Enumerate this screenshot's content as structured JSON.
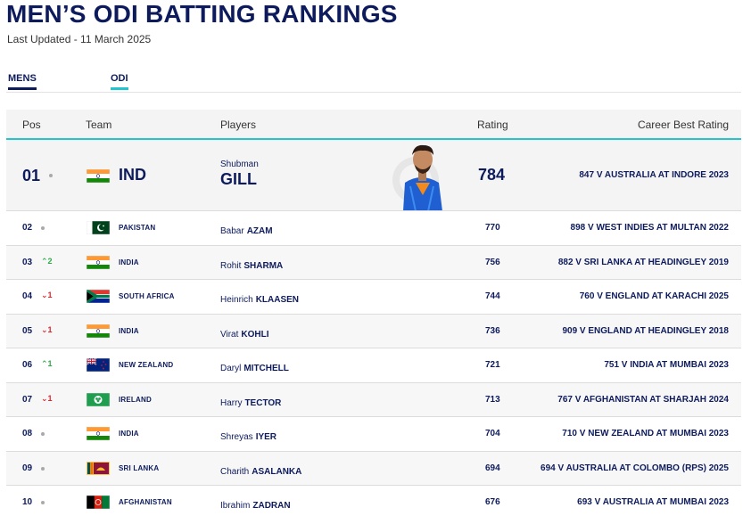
{
  "header": {
    "title": "MEN’S ODI BATTING RANKINGS",
    "updated": "Last Updated - 11 March 2025"
  },
  "filters": {
    "gender": "MENS",
    "format": "ODI"
  },
  "columns": {
    "pos": "Pos",
    "team": "Team",
    "players": "Players",
    "rating": "Rating",
    "career": "Career Best Rating"
  },
  "top": {
    "pos": "01",
    "team": "IND",
    "first": "Shubman",
    "last": "GILL",
    "rating": "784",
    "career": "847 V AUSTRALIA AT INDORE 2023",
    "flag": "india-flag"
  },
  "rows": [
    {
      "pos": "02",
      "move": "",
      "moveDir": "none",
      "country": "PAKISTAN",
      "flag": "pakistan-flag",
      "first": "Babar",
      "last": "AZAM",
      "rating": "770",
      "career": "898 V WEST INDIES AT MULTAN 2022"
    },
    {
      "pos": "03",
      "move": "2",
      "moveDir": "up",
      "country": "INDIA",
      "flag": "india-flag",
      "first": "Rohit",
      "last": "SHARMA",
      "rating": "756",
      "career": "882 V SRI LANKA AT HEADINGLEY 2019"
    },
    {
      "pos": "04",
      "move": "1",
      "moveDir": "down",
      "country": "SOUTH AFRICA",
      "flag": "south-africa-flag",
      "first": "Heinrich",
      "last": "KLAASEN",
      "rating": "744",
      "career": "760 V ENGLAND AT KARACHI 2025"
    },
    {
      "pos": "05",
      "move": "1",
      "moveDir": "down",
      "country": "INDIA",
      "flag": "india-flag",
      "first": "Virat",
      "last": "KOHLI",
      "rating": "736",
      "career": "909 V ENGLAND AT HEADINGLEY 2018"
    },
    {
      "pos": "06",
      "move": "1",
      "moveDir": "up",
      "country": "NEW ZEALAND",
      "flag": "new-zealand-flag",
      "first": "Daryl",
      "last": "MITCHELL",
      "rating": "721",
      "career": "751 V INDIA AT MUMBAI 2023"
    },
    {
      "pos": "07",
      "move": "1",
      "moveDir": "down",
      "country": "IRELAND",
      "flag": "ireland-flag",
      "first": "Harry",
      "last": "TECTOR",
      "rating": "713",
      "career": "767 V AFGHANISTAN AT SHARJAH 2024"
    },
    {
      "pos": "08",
      "move": "",
      "moveDir": "none",
      "country": "INDIA",
      "flag": "india-flag",
      "first": "Shreyas",
      "last": "IYER",
      "rating": "704",
      "career": "710 V NEW ZEALAND AT MUMBAI 2023"
    },
    {
      "pos": "09",
      "move": "",
      "moveDir": "none",
      "country": "SRI LANKA",
      "flag": "sri-lanka-flag",
      "first": "Charith",
      "last": "ASALANKA",
      "rating": "694",
      "career": "694 V AUSTRALIA AT COLOMBO (RPS) 2025"
    },
    {
      "pos": "10",
      "move": "",
      "moveDir": "none",
      "country": "AFGHANISTAN",
      "flag": "afghanistan-flag",
      "first": "Ibrahim",
      "last": "ZADRAN",
      "rating": "676",
      "career": "693 V AUSTRALIA AT MUMBAI 2023"
    }
  ]
}
